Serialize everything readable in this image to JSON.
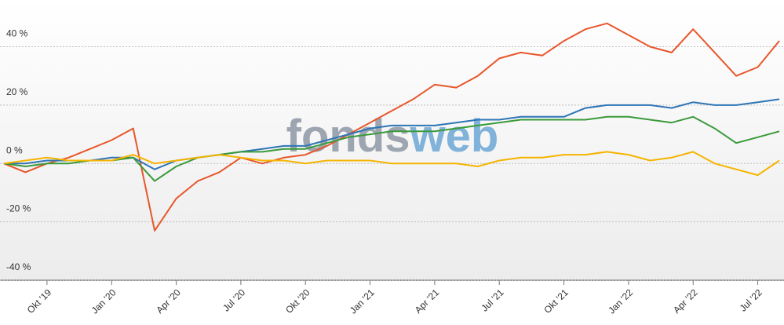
{
  "chart_data": {
    "type": "line",
    "watermark": [
      "fonds",
      "web"
    ],
    "x": [
      "2019-08",
      "2019-09",
      "2019-10",
      "2019-11",
      "2019-12",
      "2020-01",
      "2020-02",
      "2020-03",
      "2020-04",
      "2020-05",
      "2020-06",
      "2020-07",
      "2020-08",
      "2020-09",
      "2020-10",
      "2020-11",
      "2020-12",
      "2021-01",
      "2021-02",
      "2021-03",
      "2021-04",
      "2021-05",
      "2021-06",
      "2021-07",
      "2021-08",
      "2021-09",
      "2021-10",
      "2021-11",
      "2021-12",
      "2022-01",
      "2022-02",
      "2022-03",
      "2022-04",
      "2022-05",
      "2022-06",
      "2022-07",
      "2022-08"
    ],
    "xlim": [
      "2019-08",
      "2022-08"
    ],
    "xticks": [
      {
        "value": "2019-10",
        "label": "Okt '19"
      },
      {
        "value": "2020-01",
        "label": "Jan '20"
      },
      {
        "value": "2020-04",
        "label": "Apr '20"
      },
      {
        "value": "2020-07",
        "label": "Jul '20"
      },
      {
        "value": "2020-10",
        "label": "Okt '20"
      },
      {
        "value": "2021-01",
        "label": "Jan '21"
      },
      {
        "value": "2021-04",
        "label": "Apr '21"
      },
      {
        "value": "2021-07",
        "label": "Jul '21"
      },
      {
        "value": "2021-10",
        "label": "Okt '21"
      },
      {
        "value": "2022-01",
        "label": "Jan '22"
      },
      {
        "value": "2022-04",
        "label": "Apr '22"
      },
      {
        "value": "2022-07",
        "label": "Jul '22"
      }
    ],
    "ylim": [
      -40,
      56
    ],
    "yticks": [
      {
        "value": -40,
        "label": "-40 %"
      },
      {
        "value": -20,
        "label": "-20 %"
      },
      {
        "value": 0,
        "label": "0 %"
      },
      {
        "value": 20,
        "label": "20 %"
      },
      {
        "value": 40,
        "label": "40 %"
      }
    ],
    "grid": true,
    "series": [
      {
        "color": "#e8562a",
        "values": [
          0,
          -3,
          0,
          2,
          5,
          8,
          12,
          -23,
          -12,
          -6,
          -3,
          2,
          0,
          2,
          3,
          6,
          10,
          14,
          18,
          22,
          27,
          26,
          30,
          36,
          38,
          37,
          42,
          46,
          48,
          44,
          40,
          38,
          46,
          38,
          30,
          33,
          42
        ]
      },
      {
        "color": "#2e75b6",
        "values": [
          0,
          0,
          1,
          1,
          1,
          2,
          2,
          -2,
          1,
          2,
          3,
          4,
          5,
          6,
          6,
          8,
          10,
          12,
          13,
          13,
          13,
          14,
          15,
          15,
          16,
          16,
          16,
          19,
          20,
          20,
          20,
          19,
          21,
          20,
          20,
          21,
          22
        ]
      },
      {
        "color": "#3a9a3a",
        "values": [
          0,
          -1,
          0,
          0,
          1,
          1,
          2,
          -6,
          -1,
          2,
          3,
          4,
          4,
          5,
          5,
          7,
          9,
          10,
          11,
          11,
          11,
          12,
          13,
          14,
          15,
          15,
          15,
          15,
          16,
          16,
          15,
          14,
          16,
          12,
          7,
          9,
          11
        ]
      },
      {
        "color": "#f5b400",
        "values": [
          0,
          1,
          2,
          1,
          1,
          1,
          3,
          0,
          1,
          2,
          3,
          2,
          1,
          1,
          0,
          1,
          1,
          1,
          0,
          0,
          0,
          0,
          -1,
          1,
          2,
          2,
          3,
          3,
          4,
          3,
          1,
          2,
          4,
          0,
          -2,
          -4,
          1
        ]
      }
    ]
  }
}
